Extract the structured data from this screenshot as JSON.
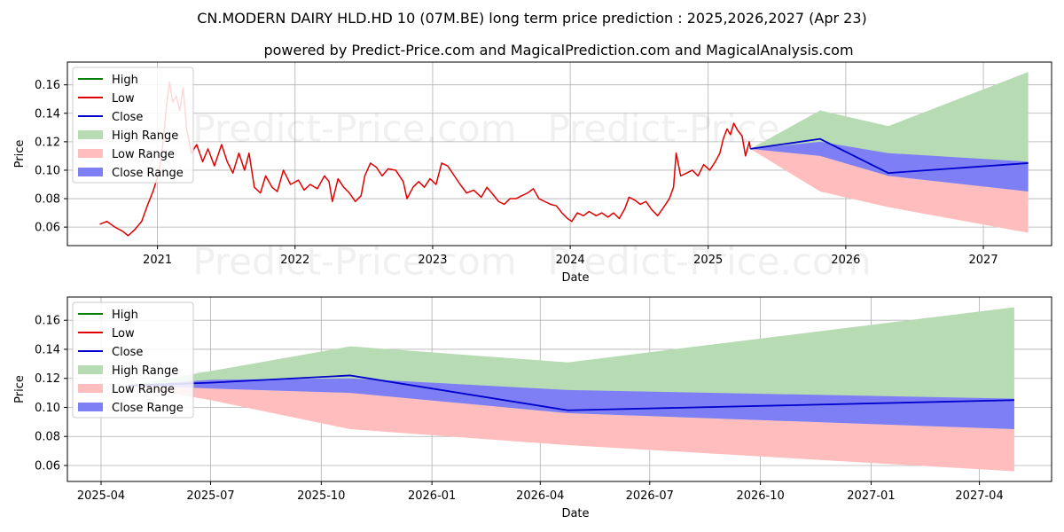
{
  "title": "CN.MODERN DAIRY HLD.HD 10 (07M.BE) long term price prediction : 2025,2026,2027 (Apr 23)",
  "subtitle": "powered by Predict-Price.com and MagicalPrediction.com and MagicalAnalysis.com",
  "watermark": "Predict-Price.com",
  "colors": {
    "high": "#008000",
    "low": "#e00000",
    "close": "#0000cc",
    "high_range": "#b7dbb3",
    "low_range": "#ffbdbd",
    "close_range": "#7f7ff5"
  },
  "legend": [
    {
      "label": "High",
      "kind": "line",
      "color_key": "high"
    },
    {
      "label": "Low",
      "kind": "line",
      "color_key": "low"
    },
    {
      "label": "Close",
      "kind": "line",
      "color_key": "close"
    },
    {
      "label": "High Range",
      "kind": "patch",
      "color_key": "high_range"
    },
    {
      "label": "Low Range",
      "kind": "patch",
      "color_key": "low_range"
    },
    {
      "label": "Close Range",
      "kind": "patch",
      "color_key": "close_range"
    }
  ],
  "chart_data": [
    {
      "type": "line",
      "panel": "top",
      "xlabel": "Date",
      "ylabel": "Price",
      "xlim": [
        "2020-05-07",
        "2027-07-01"
      ],
      "ylim": [
        0.047,
        0.176
      ],
      "xticks": [
        {
          "label": "2021",
          "date": "2021-01-01"
        },
        {
          "label": "2022",
          "date": "2022-01-01"
        },
        {
          "label": "2023",
          "date": "2023-01-01"
        },
        {
          "label": "2024",
          "date": "2024-01-01"
        },
        {
          "label": "2025",
          "date": "2025-01-01"
        },
        {
          "label": "2026",
          "date": "2026-01-01"
        },
        {
          "label": "2027",
          "date": "2027-01-01"
        }
      ],
      "yticks": [
        0.06,
        0.08,
        0.1,
        0.12,
        0.14,
        0.16
      ],
      "ytick_labels": [
        "0.06",
        "0.08",
        "0.10",
        "0.12",
        "0.14",
        "0.16"
      ],
      "grid": true,
      "legend_position": "upper-left",
      "history": [
        [
          "2020-08-01",
          0.062
        ],
        [
          "2020-08-20",
          0.064
        ],
        [
          "2020-09-10",
          0.06
        ],
        [
          "2020-10-01",
          0.057
        ],
        [
          "2020-10-15",
          0.054
        ],
        [
          "2020-11-01",
          0.058
        ],
        [
          "2020-11-20",
          0.064
        ],
        [
          "2020-12-05",
          0.075
        ],
        [
          "2020-12-20",
          0.085
        ],
        [
          "2021-01-05",
          0.098
        ],
        [
          "2021-01-15",
          0.118
        ],
        [
          "2021-01-25",
          0.145
        ],
        [
          "2021-02-02",
          0.162
        ],
        [
          "2021-02-10",
          0.148
        ],
        [
          "2021-02-20",
          0.152
        ],
        [
          "2021-03-01",
          0.142
        ],
        [
          "2021-03-10",
          0.158
        ],
        [
          "2021-03-20",
          0.128
        ],
        [
          "2021-04-01",
          0.112
        ],
        [
          "2021-04-15",
          0.118
        ],
        [
          "2021-05-01",
          0.106
        ],
        [
          "2021-05-15",
          0.115
        ],
        [
          "2021-06-01",
          0.103
        ],
        [
          "2021-06-20",
          0.118
        ],
        [
          "2021-07-05",
          0.106
        ],
        [
          "2021-07-20",
          0.098
        ],
        [
          "2021-08-05",
          0.112
        ],
        [
          "2021-08-20",
          0.1
        ],
        [
          "2021-09-01",
          0.112
        ],
        [
          "2021-09-15",
          0.088
        ],
        [
          "2021-10-01",
          0.084
        ],
        [
          "2021-10-15",
          0.096
        ],
        [
          "2021-11-01",
          0.088
        ],
        [
          "2021-11-15",
          0.085
        ],
        [
          "2021-12-01",
          0.1
        ],
        [
          "2021-12-20",
          0.09
        ],
        [
          "2022-01-10",
          0.093
        ],
        [
          "2022-01-25",
          0.086
        ],
        [
          "2022-02-10",
          0.09
        ],
        [
          "2022-03-01",
          0.087
        ],
        [
          "2022-03-20",
          0.096
        ],
        [
          "2022-04-01",
          0.092
        ],
        [
          "2022-04-10",
          0.078
        ],
        [
          "2022-04-25",
          0.094
        ],
        [
          "2022-05-10",
          0.088
        ],
        [
          "2022-05-25",
          0.084
        ],
        [
          "2022-06-10",
          0.078
        ],
        [
          "2022-06-25",
          0.082
        ],
        [
          "2022-07-05",
          0.096
        ],
        [
          "2022-07-20",
          0.105
        ],
        [
          "2022-08-05",
          0.102
        ],
        [
          "2022-08-20",
          0.096
        ],
        [
          "2022-09-05",
          0.101
        ],
        [
          "2022-09-25",
          0.1
        ],
        [
          "2022-10-15",
          0.092
        ],
        [
          "2022-10-25",
          0.08
        ],
        [
          "2022-11-10",
          0.088
        ],
        [
          "2022-11-25",
          0.092
        ],
        [
          "2022-12-10",
          0.088
        ],
        [
          "2022-12-25",
          0.094
        ],
        [
          "2023-01-10",
          0.09
        ],
        [
          "2023-01-25",
          0.105
        ],
        [
          "2023-02-10",
          0.103
        ],
        [
          "2023-02-25",
          0.097
        ],
        [
          "2023-03-15",
          0.09
        ],
        [
          "2023-04-01",
          0.084
        ],
        [
          "2023-04-20",
          0.086
        ],
        [
          "2023-05-10",
          0.081
        ],
        [
          "2023-05-25",
          0.088
        ],
        [
          "2023-06-10",
          0.083
        ],
        [
          "2023-06-25",
          0.078
        ],
        [
          "2023-07-10",
          0.076
        ],
        [
          "2023-07-25",
          0.08
        ],
        [
          "2023-08-10",
          0.08
        ],
        [
          "2023-08-25",
          0.082
        ],
        [
          "2023-09-10",
          0.084
        ],
        [
          "2023-09-25",
          0.087
        ],
        [
          "2023-10-10",
          0.08
        ],
        [
          "2023-10-25",
          0.078
        ],
        [
          "2023-11-10",
          0.076
        ],
        [
          "2023-11-25",
          0.075
        ],
        [
          "2023-12-10",
          0.07
        ],
        [
          "2023-12-25",
          0.066
        ],
        [
          "2024-01-05",
          0.064
        ],
        [
          "2024-01-20",
          0.07
        ],
        [
          "2024-02-05",
          0.068
        ],
        [
          "2024-02-20",
          0.071
        ],
        [
          "2024-03-10",
          0.068
        ],
        [
          "2024-03-25",
          0.07
        ],
        [
          "2024-04-10",
          0.067
        ],
        [
          "2024-04-25",
          0.07
        ],
        [
          "2024-05-10",
          0.066
        ],
        [
          "2024-05-25",
          0.073
        ],
        [
          "2024-06-05",
          0.081
        ],
        [
          "2024-06-20",
          0.079
        ],
        [
          "2024-07-05",
          0.076
        ],
        [
          "2024-07-20",
          0.078
        ],
        [
          "2024-08-05",
          0.072
        ],
        [
          "2024-08-20",
          0.068
        ],
        [
          "2024-09-05",
          0.074
        ],
        [
          "2024-09-20",
          0.08
        ],
        [
          "2024-10-01",
          0.088
        ],
        [
          "2024-10-08",
          0.112
        ],
        [
          "2024-10-20",
          0.096
        ],
        [
          "2024-11-05",
          0.098
        ],
        [
          "2024-11-20",
          0.1
        ],
        [
          "2024-12-05",
          0.096
        ],
        [
          "2024-12-20",
          0.104
        ],
        [
          "2025-01-05",
          0.1
        ],
        [
          "2025-01-20",
          0.106
        ],
        [
          "2025-02-01",
          0.112
        ],
        [
          "2025-02-10",
          0.122
        ],
        [
          "2025-02-20",
          0.129
        ],
        [
          "2025-03-01",
          0.125
        ],
        [
          "2025-03-10",
          0.133
        ],
        [
          "2025-03-20",
          0.128
        ],
        [
          "2025-04-01",
          0.124
        ],
        [
          "2025-04-10",
          0.11
        ],
        [
          "2025-04-20",
          0.12
        ],
        [
          "2025-04-23",
          0.115
        ]
      ],
      "forecast": {
        "dates": [
          "2025-04-23",
          "2025-10-25",
          "2026-04-24",
          "2027-04-30"
        ],
        "close": [
          0.115,
          0.122,
          0.098,
          0.105
        ],
        "high_range": [
          0.115,
          0.142,
          0.131,
          0.169
        ],
        "low_range": [
          0.115,
          0.085,
          0.074,
          0.056
        ],
        "close_range_upper": [
          0.115,
          0.12,
          0.112,
          0.106
        ],
        "close_range_lower": [
          0.115,
          0.11,
          0.096,
          0.085
        ]
      }
    },
    {
      "type": "line",
      "panel": "bottom",
      "xlabel": "Date",
      "ylabel": "Price",
      "xlim": [
        "2025-03-04",
        "2027-05-31"
      ],
      "ylim": [
        0.049,
        0.176
      ],
      "xticks": [
        {
          "label": "2025-04",
          "date": "2025-04-01"
        },
        {
          "label": "2025-07",
          "date": "2025-07-01"
        },
        {
          "label": "2025-10",
          "date": "2025-10-01"
        },
        {
          "label": "2026-01",
          "date": "2026-01-01"
        },
        {
          "label": "2026-04",
          "date": "2026-04-01"
        },
        {
          "label": "2026-07",
          "date": "2026-07-01"
        },
        {
          "label": "2026-10",
          "date": "2026-10-01"
        },
        {
          "label": "2027-01",
          "date": "2027-01-01"
        },
        {
          "label": "2027-04",
          "date": "2027-04-01"
        }
      ],
      "yticks": [
        0.06,
        0.08,
        0.1,
        0.12,
        0.14,
        0.16
      ],
      "ytick_labels": [
        "0.06",
        "0.08",
        "0.10",
        "0.12",
        "0.14",
        "0.16"
      ],
      "grid": true,
      "legend_position": "upper-left",
      "forecast": {
        "dates": [
          "2025-04-23",
          "2025-07-01",
          "2025-10-25",
          "2026-04-24",
          "2027-04-30"
        ],
        "close": [
          0.115,
          0.117,
          0.122,
          0.098,
          0.105
        ],
        "high_range": [
          0.115,
          0.125,
          0.142,
          0.131,
          0.169
        ],
        "low_range": [
          0.115,
          0.105,
          0.085,
          0.074,
          0.056
        ],
        "close_range_upper": [
          0.115,
          0.119,
          0.12,
          0.112,
          0.106
        ],
        "close_range_lower": [
          0.115,
          0.113,
          0.11,
          0.096,
          0.085
        ]
      }
    }
  ]
}
